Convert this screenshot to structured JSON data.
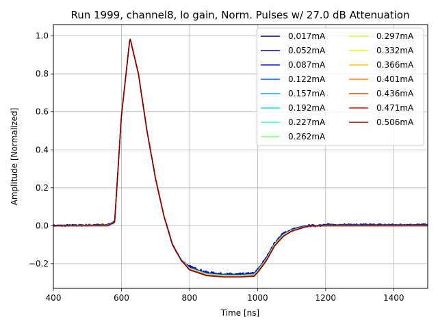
{
  "chart_data": {
    "type": "line",
    "title": "Run 1999, channel8, lo gain, Norm. Pulses w/ 27.0 dB Attenuation",
    "xlabel": "Time [ns]",
    "ylabel": "Amplitude [Normalized]",
    "xlim": [
      400,
      1500
    ],
    "ylim": [
      -0.33,
      1.06
    ],
    "xticks": [
      400,
      600,
      800,
      1000,
      1200,
      1400
    ],
    "yticks": [
      -0.2,
      0.0,
      0.2,
      0.4,
      0.6,
      0.8,
      1.0
    ],
    "xtick_labels": [
      "400",
      "600",
      "800",
      "1000",
      "1200",
      "1400"
    ],
    "ytick_labels": [
      "−0.2",
      "0.0",
      "0.2",
      "0.4",
      "0.6",
      "0.8",
      "1.0"
    ],
    "grid": true,
    "legend_position": "top-right",
    "legend_columns": 2,
    "series": [
      {
        "name": "0.017mA",
        "color": "#00007f",
        "noise": 0.006,
        "x": [
          400,
          560,
          580,
          600,
          625,
          650,
          675,
          700,
          725,
          750,
          775,
          800,
          850,
          900,
          950,
          990,
          1000,
          1025,
          1050,
          1075,
          1100,
          1125,
          1150,
          1175,
          1200,
          1300,
          1400,
          1500
        ],
        "y": [
          0.0,
          0.005,
          0.02,
          0.58,
          0.99,
          0.8,
          0.5,
          0.25,
          0.05,
          -0.1,
          -0.18,
          -0.215,
          -0.245,
          -0.255,
          -0.255,
          -0.25,
          -0.23,
          -0.17,
          -0.09,
          -0.04,
          -0.02,
          -0.01,
          0.0,
          0.0,
          0.005,
          0.005,
          0.005,
          0.005
        ]
      },
      {
        "name": "0.052mA",
        "color": "#0000c4",
        "noise": 0.004,
        "x": [
          400,
          560,
          580,
          600,
          625,
          650,
          675,
          700,
          725,
          750,
          775,
          800,
          850,
          900,
          950,
          990,
          1000,
          1025,
          1050,
          1075,
          1100,
          1125,
          1150,
          1175,
          1200,
          1300,
          1400,
          1500
        ],
        "y": [
          0.0,
          0.004,
          0.02,
          0.58,
          0.99,
          0.8,
          0.5,
          0.25,
          0.05,
          -0.1,
          -0.18,
          -0.218,
          -0.248,
          -0.257,
          -0.257,
          -0.252,
          -0.232,
          -0.172,
          -0.092,
          -0.043,
          -0.022,
          -0.011,
          0.0,
          0.0,
          0.004,
          0.004,
          0.004,
          0.004
        ]
      },
      {
        "name": "0.087mA",
        "color": "#0010ff",
        "noise": 0.003,
        "x": [
          400,
          560,
          580,
          600,
          625,
          650,
          675,
          700,
          725,
          750,
          775,
          800,
          850,
          900,
          950,
          990,
          1000,
          1025,
          1050,
          1075,
          1100,
          1125,
          1150,
          1175,
          1200,
          1300,
          1400,
          1500
        ],
        "y": [
          0.0,
          0.004,
          0.02,
          0.58,
          0.99,
          0.8,
          0.5,
          0.25,
          0.05,
          -0.1,
          -0.18,
          -0.22,
          -0.25,
          -0.259,
          -0.259,
          -0.254,
          -0.234,
          -0.174,
          -0.094,
          -0.045,
          -0.023,
          -0.011,
          0.0,
          0.0,
          0.003,
          0.003,
          0.003,
          0.003
        ]
      },
      {
        "name": "0.122mA",
        "color": "#005cff",
        "noise": 0.002,
        "x": [
          400,
          560,
          580,
          600,
          625,
          650,
          675,
          700,
          725,
          750,
          775,
          800,
          850,
          900,
          950,
          990,
          1000,
          1025,
          1050,
          1075,
          1100,
          1125,
          1150,
          1175,
          1200,
          1300,
          1400,
          1500
        ],
        "y": [
          0.0,
          0.003,
          0.02,
          0.58,
          0.99,
          0.8,
          0.5,
          0.25,
          0.05,
          -0.1,
          -0.18,
          -0.222,
          -0.252,
          -0.26,
          -0.26,
          -0.255,
          -0.236,
          -0.176,
          -0.096,
          -0.046,
          -0.024,
          -0.012,
          0.0,
          0.0,
          0.002,
          0.002,
          0.002,
          0.002
        ]
      },
      {
        "name": "0.157mA",
        "color": "#00a8ff",
        "noise": 0.002,
        "x": [
          400,
          560,
          580,
          600,
          625,
          650,
          675,
          700,
          725,
          750,
          775,
          800,
          850,
          900,
          950,
          990,
          1000,
          1025,
          1050,
          1075,
          1100,
          1125,
          1150,
          1175,
          1200,
          1300,
          1400,
          1500
        ],
        "y": [
          0.0,
          0.003,
          0.02,
          0.58,
          0.99,
          0.8,
          0.5,
          0.25,
          0.05,
          -0.1,
          -0.18,
          -0.223,
          -0.253,
          -0.261,
          -0.261,
          -0.256,
          -0.237,
          -0.177,
          -0.097,
          -0.047,
          -0.024,
          -0.012,
          0.0,
          0.0,
          0.002,
          0.002,
          0.002,
          0.002
        ]
      },
      {
        "name": "0.192mA",
        "color": "#02e8f4",
        "noise": 0.001,
        "x": [
          400,
          560,
          580,
          600,
          625,
          650,
          675,
          700,
          725,
          750,
          775,
          800,
          850,
          900,
          950,
          990,
          1000,
          1025,
          1050,
          1075,
          1100,
          1125,
          1150,
          1175,
          1200,
          1300,
          1400,
          1500
        ],
        "y": [
          0.0,
          0.002,
          0.02,
          0.58,
          0.99,
          0.8,
          0.5,
          0.25,
          0.05,
          -0.1,
          -0.18,
          -0.224,
          -0.254,
          -0.262,
          -0.262,
          -0.257,
          -0.238,
          -0.178,
          -0.098,
          -0.048,
          -0.025,
          -0.012,
          0.0,
          0.0,
          0.001,
          0.001,
          0.001,
          0.001
        ]
      },
      {
        "name": "0.227mA",
        "color": "#33ffc4",
        "noise": 0.001,
        "x": [
          400,
          560,
          580,
          600,
          625,
          650,
          675,
          700,
          725,
          750,
          775,
          800,
          850,
          900,
          950,
          990,
          1000,
          1025,
          1050,
          1075,
          1100,
          1125,
          1150,
          1175,
          1200,
          1300,
          1400,
          1500
        ],
        "y": [
          0.0,
          0.002,
          0.02,
          0.58,
          0.99,
          0.8,
          0.5,
          0.25,
          0.05,
          -0.1,
          -0.18,
          -0.225,
          -0.255,
          -0.263,
          -0.263,
          -0.258,
          -0.239,
          -0.179,
          -0.099,
          -0.049,
          -0.025,
          -0.013,
          0.0,
          0.0,
          0.001,
          0.001,
          0.001,
          0.001
        ]
      },
      {
        "name": "0.262mA",
        "color": "#7dff7a",
        "noise": 0.001,
        "x": [
          400,
          560,
          580,
          600,
          625,
          650,
          675,
          700,
          725,
          750,
          775,
          800,
          850,
          900,
          950,
          990,
          1000,
          1025,
          1050,
          1075,
          1100,
          1125,
          1150,
          1175,
          1200,
          1300,
          1400,
          1500
        ],
        "y": [
          0.0,
          0.002,
          0.02,
          0.58,
          0.99,
          0.8,
          0.5,
          0.25,
          0.05,
          -0.1,
          -0.18,
          -0.226,
          -0.256,
          -0.264,
          -0.264,
          -0.259,
          -0.24,
          -0.18,
          -0.1,
          -0.05,
          -0.026,
          -0.013,
          0.0,
          0.0,
          0.001,
          0.001,
          0.001,
          0.001
        ]
      },
      {
        "name": "0.297mA",
        "color": "#c4ff33",
        "noise": 0.001,
        "x": [
          400,
          560,
          580,
          600,
          625,
          650,
          675,
          700,
          725,
          750,
          775,
          800,
          850,
          900,
          950,
          990,
          1000,
          1025,
          1050,
          1075,
          1100,
          1125,
          1150,
          1175,
          1200,
          1300,
          1400,
          1500
        ],
        "y": [
          0.0,
          0.001,
          0.02,
          0.58,
          0.99,
          0.8,
          0.5,
          0.25,
          0.05,
          -0.1,
          -0.18,
          -0.227,
          -0.257,
          -0.265,
          -0.265,
          -0.26,
          -0.241,
          -0.181,
          -0.101,
          -0.051,
          -0.026,
          -0.013,
          0.0,
          0.0,
          0.001,
          0.001,
          0.001,
          0.001
        ]
      },
      {
        "name": "0.332mA",
        "color": "#f4f802",
        "noise": 0.0,
        "x": [
          400,
          560,
          580,
          600,
          625,
          650,
          675,
          700,
          725,
          750,
          775,
          800,
          850,
          900,
          950,
          990,
          1000,
          1025,
          1050,
          1075,
          1100,
          1125,
          1150,
          1175,
          1200,
          1300,
          1400,
          1500
        ],
        "y": [
          0.0,
          0.001,
          0.02,
          0.58,
          0.99,
          0.8,
          0.5,
          0.25,
          0.05,
          -0.1,
          -0.18,
          -0.228,
          -0.258,
          -0.266,
          -0.266,
          -0.261,
          -0.242,
          -0.182,
          -0.102,
          -0.052,
          -0.027,
          -0.014,
          0.0,
          0.0,
          0.0,
          0.0,
          0.0,
          0.0
        ]
      },
      {
        "name": "0.366mA",
        "color": "#ffc400",
        "noise": 0.0,
        "x": [
          400,
          560,
          580,
          600,
          625,
          650,
          675,
          700,
          725,
          750,
          775,
          800,
          850,
          900,
          950,
          990,
          1000,
          1025,
          1050,
          1075,
          1100,
          1125,
          1150,
          1175,
          1200,
          1300,
          1400,
          1500
        ],
        "y": [
          0.0,
          0.001,
          0.02,
          0.58,
          0.99,
          0.8,
          0.5,
          0.25,
          0.05,
          -0.1,
          -0.18,
          -0.229,
          -0.259,
          -0.267,
          -0.267,
          -0.262,
          -0.243,
          -0.183,
          -0.103,
          -0.053,
          -0.027,
          -0.014,
          0.0,
          0.0,
          0.0,
          0.0,
          0.0,
          0.0
        ]
      },
      {
        "name": "0.401mA",
        "color": "#ff8200",
        "noise": 0.0,
        "x": [
          400,
          560,
          580,
          600,
          625,
          650,
          675,
          700,
          725,
          750,
          775,
          800,
          850,
          900,
          950,
          990,
          1000,
          1025,
          1050,
          1075,
          1100,
          1125,
          1150,
          1175,
          1200,
          1300,
          1400,
          1500
        ],
        "y": [
          0.0,
          0.001,
          0.02,
          0.58,
          0.99,
          0.8,
          0.5,
          0.25,
          0.05,
          -0.1,
          -0.18,
          -0.23,
          -0.26,
          -0.268,
          -0.268,
          -0.263,
          -0.244,
          -0.184,
          -0.104,
          -0.054,
          -0.028,
          -0.014,
          0.0,
          0.0,
          0.0,
          0.0,
          0.0,
          0.0
        ]
      },
      {
        "name": "0.436mA",
        "color": "#ff4100",
        "noise": 0.0,
        "x": [
          400,
          560,
          580,
          600,
          625,
          650,
          675,
          700,
          725,
          750,
          775,
          800,
          850,
          900,
          950,
          990,
          1000,
          1025,
          1050,
          1075,
          1100,
          1125,
          1150,
          1175,
          1200,
          1300,
          1400,
          1500
        ],
        "y": [
          0.0,
          0.0,
          0.02,
          0.58,
          0.99,
          0.8,
          0.5,
          0.25,
          0.05,
          -0.1,
          -0.18,
          -0.231,
          -0.261,
          -0.269,
          -0.269,
          -0.264,
          -0.245,
          -0.185,
          -0.105,
          -0.055,
          -0.028,
          -0.015,
          0.0,
          0.0,
          0.0,
          0.0,
          0.0,
          0.0
        ]
      },
      {
        "name": "0.471mA",
        "color": "#f10800",
        "noise": 0.0,
        "x": [
          400,
          560,
          580,
          600,
          625,
          650,
          675,
          700,
          725,
          750,
          775,
          800,
          850,
          900,
          950,
          990,
          1000,
          1025,
          1050,
          1075,
          1100,
          1125,
          1150,
          1175,
          1200,
          1300,
          1400,
          1500
        ],
        "y": [
          0.0,
          0.0,
          0.02,
          0.58,
          0.99,
          0.8,
          0.5,
          0.25,
          0.05,
          -0.1,
          -0.18,
          -0.232,
          -0.262,
          -0.27,
          -0.27,
          -0.265,
          -0.246,
          -0.186,
          -0.106,
          -0.056,
          -0.029,
          -0.015,
          0.0,
          0.0,
          0.0,
          0.0,
          0.0,
          0.0
        ]
      },
      {
        "name": "0.506mA",
        "color": "#7f0000",
        "noise": 0.0,
        "x": [
          400,
          560,
          580,
          600,
          625,
          650,
          675,
          700,
          725,
          750,
          775,
          800,
          850,
          900,
          950,
          990,
          1000,
          1025,
          1050,
          1075,
          1100,
          1125,
          1150,
          1175,
          1200,
          1300,
          1400,
          1500
        ],
        "y": [
          0.0,
          0.0,
          0.02,
          0.58,
          0.99,
          0.8,
          0.5,
          0.25,
          0.05,
          -0.1,
          -0.18,
          -0.233,
          -0.263,
          -0.27,
          -0.27,
          -0.266,
          -0.247,
          -0.187,
          -0.107,
          -0.057,
          -0.029,
          -0.015,
          0.0,
          0.0,
          0.0,
          0.0,
          0.0,
          0.0
        ]
      }
    ]
  }
}
